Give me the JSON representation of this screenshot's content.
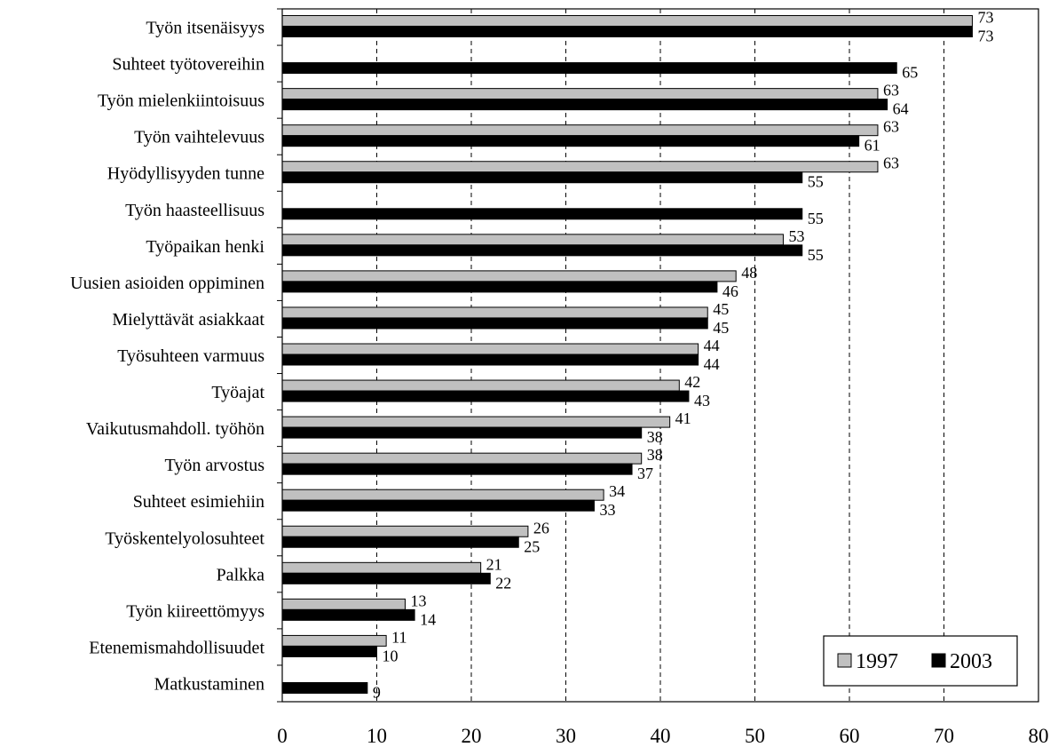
{
  "chart_data": {
    "type": "bar",
    "orientation": "horizontal",
    "title": "",
    "xlabel": "",
    "ylabel": "",
    "xlim": [
      0,
      80
    ],
    "x_ticks": [
      "0",
      "10",
      "20",
      "30",
      "40",
      "50",
      "60",
      "70",
      "80"
    ],
    "grid": "vertical dashed",
    "legend_position": "bottom-right",
    "categories": [
      "Työn itsenäisyys",
      "Suhteet työtovereihin",
      "Työn mielenkiintoisuus",
      "Työn vaihtelevuus",
      "Hyödyllisyyden tunne",
      "Työn haasteellisuus",
      "Työpaikan henki",
      "Uusien asioiden oppiminen",
      "Mielyttävät asiakkaat",
      "Työsuhteen varmuus",
      "Työajat",
      "Vaikutusmahdoll. työhön",
      "Työn arvostus",
      "Suhteet esimiehiin",
      "Työskentelyolosuhteet",
      "Palkka",
      "Työn kiireettömyys",
      "Etenemismahdollisuudet",
      "Matkustaminen"
    ],
    "series": [
      {
        "name": "1997",
        "color": "#c0c0c0",
        "values": [
          73,
          null,
          63,
          63,
          63,
          null,
          53,
          48,
          45,
          44,
          42,
          41,
          38,
          34,
          26,
          21,
          13,
          11,
          null
        ]
      },
      {
        "name": "2003",
        "color": "#000000",
        "values": [
          73,
          65,
          64,
          61,
          55,
          55,
          55,
          46,
          45,
          44,
          43,
          38,
          37,
          33,
          25,
          22,
          14,
          10,
          9
        ]
      }
    ]
  }
}
